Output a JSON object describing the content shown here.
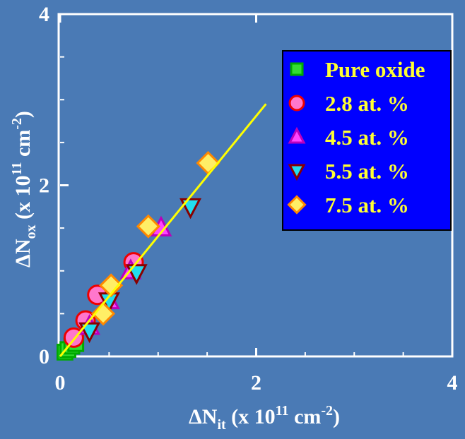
{
  "colors": {
    "background": "#4a7ab5",
    "axis": "#ffffff",
    "legend_bg": "#0000ff",
    "legend_text": "#ffff33",
    "fit_line": "#ffff00"
  },
  "chart_data": {
    "type": "scatter",
    "x_title": {
      "prefix": "ΔN",
      "sub": "it",
      "mid": " (x 10",
      "sup1": "11",
      "unit": " cm",
      "sup2": "-2",
      "suffix": ")"
    },
    "y_title": {
      "prefix": "ΔN",
      "sub": "ox",
      "mid": " (x 10",
      "sup1": "11",
      "unit": " cm",
      "sup2": "-2",
      "suffix": ")"
    },
    "xlim": [
      0,
      4
    ],
    "ylim": [
      0,
      4
    ],
    "xticks": [
      {
        "value": 0,
        "label": "0"
      },
      {
        "value": 2,
        "label": "2"
      },
      {
        "value": 4,
        "label": "4"
      }
    ],
    "yticks": [
      {
        "value": 0,
        "label": "0"
      },
      {
        "value": 2,
        "label": "2"
      },
      {
        "value": 4,
        "label": "4"
      }
    ],
    "legend_position": "top-right",
    "grid": false,
    "series": [
      {
        "name": "Pure oxide",
        "marker": "square",
        "fill": "#33dd33",
        "stroke": "#00aa00",
        "points": [
          [
            0.05,
            0.05
          ],
          [
            0.08,
            0.08
          ],
          [
            0.12,
            0.12
          ],
          [
            0.16,
            0.15
          ]
        ]
      },
      {
        "name": "2.8 at. %",
        "marker": "circle",
        "fill": "#ff77cc",
        "stroke": "#ee0000",
        "points": [
          [
            0.14,
            0.22
          ],
          [
            0.26,
            0.42
          ],
          [
            0.38,
            0.72
          ],
          [
            0.75,
            1.1
          ]
        ]
      },
      {
        "name": "4.5 at. %",
        "marker": "triangle-up",
        "fill": "#ff44ff",
        "stroke": "#bb00bb",
        "points": [
          [
            0.3,
            0.35
          ],
          [
            0.5,
            0.65
          ],
          [
            0.72,
            1.0
          ],
          [
            1.03,
            1.5
          ]
        ]
      },
      {
        "name": "5.5 at. %",
        "marker": "triangle-down",
        "fill": "#22ddee",
        "stroke": "#880000",
        "points": [
          [
            0.3,
            0.3
          ],
          [
            0.5,
            0.65
          ],
          [
            0.78,
            0.98
          ],
          [
            1.33,
            1.75
          ]
        ]
      },
      {
        "name": "7.5 at. %",
        "marker": "diamond",
        "fill": "#ffee66",
        "stroke": "#ff8800",
        "points": [
          [
            0.44,
            0.5
          ],
          [
            0.52,
            0.83
          ],
          [
            0.9,
            1.52
          ],
          [
            1.51,
            2.26
          ]
        ]
      }
    ],
    "fit_line": {
      "points": [
        [
          0,
          0
        ],
        [
          2.1,
          2.95
        ]
      ]
    }
  }
}
